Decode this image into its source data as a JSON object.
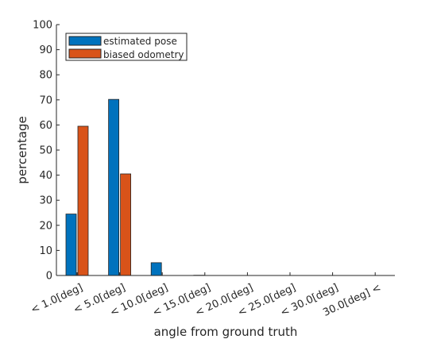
{
  "chart_data": {
    "type": "bar",
    "title": "",
    "xlabel": "angle from ground truth",
    "ylabel": "percentage",
    "ylim": [
      0,
      100
    ],
    "yticks": [
      0,
      10,
      20,
      30,
      40,
      50,
      60,
      70,
      80,
      90,
      100
    ],
    "categories": [
      "< 1.0[deg]",
      "< 5.0[deg]",
      "< 10.0[deg]",
      "< 15.0[deg]",
      "< 20.0[deg]",
      "< 25.0[deg]",
      "< 30.0[deg]",
      "30.0[deg] <"
    ],
    "series": [
      {
        "name": "estimated pose",
        "color": "#0072BD",
        "values": [
          24.5,
          70.2,
          5.1,
          0.1,
          0,
          0,
          0,
          0
        ]
      },
      {
        "name": "biased odometry",
        "color": "#D95319",
        "values": [
          59.5,
          40.5,
          0,
          0,
          0,
          0,
          0,
          0
        ]
      }
    ],
    "legend_position": "top-left",
    "grid": false
  }
}
